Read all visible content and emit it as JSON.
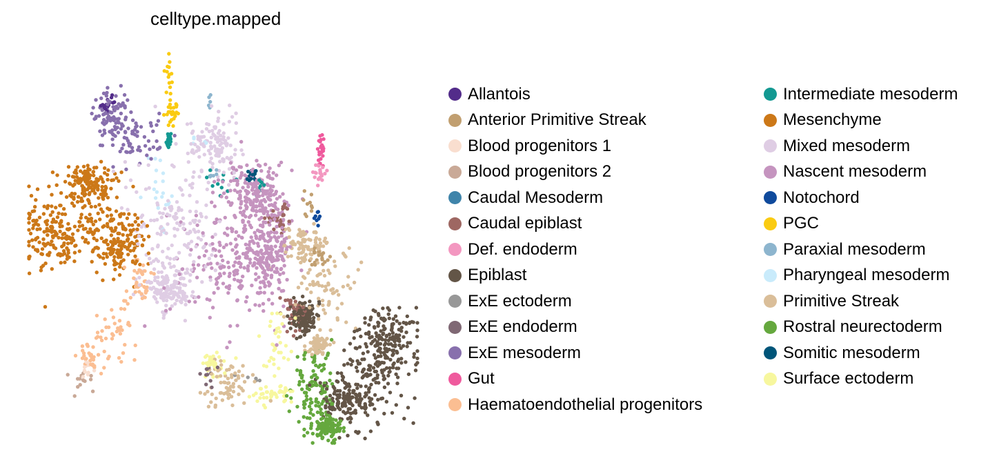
{
  "chart_data": {
    "type": "scatter",
    "title": "celltype.mapped",
    "xlabel": "",
    "ylabel": "",
    "grid": false,
    "legend_placement": "right",
    "categories": [
      {
        "name": "Allantois",
        "color": "#532c8a"
      },
      {
        "name": "Anterior Primitive Streak",
        "color": "#c19f70"
      },
      {
        "name": "Blood progenitors 1",
        "color": "#f9decf"
      },
      {
        "name": "Blood progenitors 2",
        "color": "#c9a997"
      },
      {
        "name": "Caudal Mesoderm",
        "color": "#3f84aa"
      },
      {
        "name": "Caudal epiblast",
        "color": "#9e6762"
      },
      {
        "name": "Def. endoderm",
        "color": "#f397c0"
      },
      {
        "name": "Epiblast",
        "color": "#635547"
      },
      {
        "name": "ExE ectoderm",
        "color": "#989898"
      },
      {
        "name": "ExE endoderm",
        "color": "#7f6874"
      },
      {
        "name": "ExE mesoderm",
        "color": "#8870ad"
      },
      {
        "name": "Gut",
        "color": "#ef5a9d"
      },
      {
        "name": "Haematoendothelial progenitors",
        "color": "#fbbe92"
      },
      {
        "name": "Intermediate mesoderm",
        "color": "#139992"
      },
      {
        "name": "Mesenchyme",
        "color": "#cc7818"
      },
      {
        "name": "Mixed mesoderm",
        "color": "#dfcde4"
      },
      {
        "name": "Nascent mesoderm",
        "color": "#c594bf"
      },
      {
        "name": "Notochord",
        "color": "#0f4a9c"
      },
      {
        "name": "PGC",
        "color": "#facb12"
      },
      {
        "name": "Paraxial mesoderm",
        "color": "#8db5ce"
      },
      {
        "name": "Pharyngeal mesoderm",
        "color": "#c9ebfb"
      },
      {
        "name": "Primitive Streak",
        "color": "#dabe99"
      },
      {
        "name": "Rostral neurectoderm",
        "color": "#65a83e"
      },
      {
        "name": "Somitic mesoderm",
        "color": "#005579"
      },
      {
        "name": "Surface ectoderm",
        "color": "#f7f79e"
      }
    ],
    "clusters": [
      {
        "category": "Mesenchyme",
        "n": 520,
        "blobs": [
          [
            120,
            330,
            65,
            60
          ],
          [
            70,
            340,
            40,
            50
          ],
          [
            130,
            265,
            30,
            25
          ],
          [
            175,
            350,
            30,
            40
          ]
        ]
      },
      {
        "category": "ExE mesoderm",
        "n": 150,
        "blobs": [
          [
            190,
            200,
            50,
            35
          ],
          [
            160,
            165,
            20,
            25
          ]
        ]
      },
      {
        "category": "Allantois",
        "n": 18,
        "blobs": [
          [
            158,
            150,
            10,
            14
          ]
        ]
      },
      {
        "category": "PGC",
        "n": 40,
        "blobs": [
          [
            244,
            110,
            6,
            28
          ],
          [
            250,
            165,
            10,
            20
          ]
        ]
      },
      {
        "category": "Mixed mesoderm",
        "n": 420,
        "blobs": [
          [
            250,
            330,
            55,
            85
          ],
          [
            310,
            210,
            35,
            45
          ],
          [
            245,
            420,
            35,
            25
          ]
        ]
      },
      {
        "category": "Nascent mesoderm",
        "n": 580,
        "blobs": [
          [
            340,
            380,
            70,
            80
          ],
          [
            370,
            280,
            35,
            45
          ],
          [
            390,
            360,
            25,
            55
          ]
        ]
      },
      {
        "category": "Pharyngeal mesoderm",
        "n": 25,
        "blobs": [
          [
            235,
            275,
            20,
            45
          ],
          [
            285,
            205,
            15,
            15
          ]
        ]
      },
      {
        "category": "Intermediate mesoderm",
        "n": 40,
        "blobs": [
          [
            318,
            262,
            22,
            20
          ],
          [
            376,
            272,
            8,
            12
          ],
          [
            244,
            205,
            4,
            12
          ]
        ]
      },
      {
        "category": "Somitic mesoderm",
        "n": 16,
        "blobs": [
          [
            366,
            252,
            8,
            10
          ]
        ]
      },
      {
        "category": "Paraxial mesoderm",
        "n": 10,
        "blobs": [
          [
            305,
            152,
            6,
            12
          ],
          [
            310,
            250,
            10,
            10
          ]
        ]
      },
      {
        "category": "Caudal epiblast",
        "n": 70,
        "blobs": [
          [
            405,
            315,
            15,
            20
          ],
          [
            425,
            450,
            14,
            28
          ]
        ]
      },
      {
        "category": "Primitive Streak",
        "n": 300,
        "blobs": [
          [
            468,
            420,
            45,
            60
          ],
          [
            440,
            355,
            25,
            25
          ],
          [
            330,
            560,
            30,
            30
          ],
          [
            462,
            500,
            12,
            12
          ]
        ]
      },
      {
        "category": "Anterior Primitive Streak",
        "n": 30,
        "blobs": [
          [
            450,
            300,
            12,
            18
          ],
          [
            460,
            375,
            12,
            15
          ]
        ]
      },
      {
        "category": "Notochord",
        "n": 8,
        "blobs": [
          [
            460,
            315,
            5,
            18
          ]
        ]
      },
      {
        "category": "Gut",
        "n": 25,
        "blobs": [
          [
            466,
            218,
            5,
            15
          ]
        ]
      },
      {
        "category": "Def. endoderm",
        "n": 20,
        "blobs": [
          [
            463,
            250,
            8,
            20
          ]
        ]
      },
      {
        "category": "Epiblast",
        "n": 560,
        "blobs": [
          [
            540,
            545,
            55,
            65
          ],
          [
            560,
            490,
            40,
            35
          ],
          [
            500,
            580,
            35,
            30
          ],
          [
            440,
            460,
            15,
            20
          ]
        ]
      },
      {
        "category": "Rostral neurectoderm",
        "n": 230,
        "blobs": [
          [
            455,
            570,
            28,
            55
          ],
          [
            478,
            620,
            15,
            15
          ]
        ]
      },
      {
        "category": "Surface ectoderm",
        "n": 110,
        "blobs": [
          [
            400,
            500,
            22,
            45
          ],
          [
            395,
            570,
            30,
            14
          ],
          [
            310,
            530,
            15,
            15
          ]
        ]
      },
      {
        "category": "Haematoendothelial progenitors",
        "n": 110,
        "blobs": [
          [
            165,
            485,
            28,
            38
          ],
          [
            200,
            410,
            20,
            30
          ],
          [
            130,
            520,
            15,
            18
          ]
        ]
      },
      {
        "category": "Blood progenitors 1",
        "n": 12,
        "blobs": [
          [
            125,
            530,
            10,
            12
          ]
        ]
      },
      {
        "category": "Blood progenitors 2",
        "n": 14,
        "blobs": [
          [
            118,
            552,
            12,
            14
          ]
        ]
      },
      {
        "category": "ExE endoderm",
        "n": 12,
        "blobs": [
          [
            300,
            545,
            10,
            22
          ]
        ]
      },
      {
        "category": "ExE ectoderm",
        "n": 5,
        "blobs": [
          [
            360,
            550,
            16,
            8
          ]
        ]
      }
    ]
  }
}
